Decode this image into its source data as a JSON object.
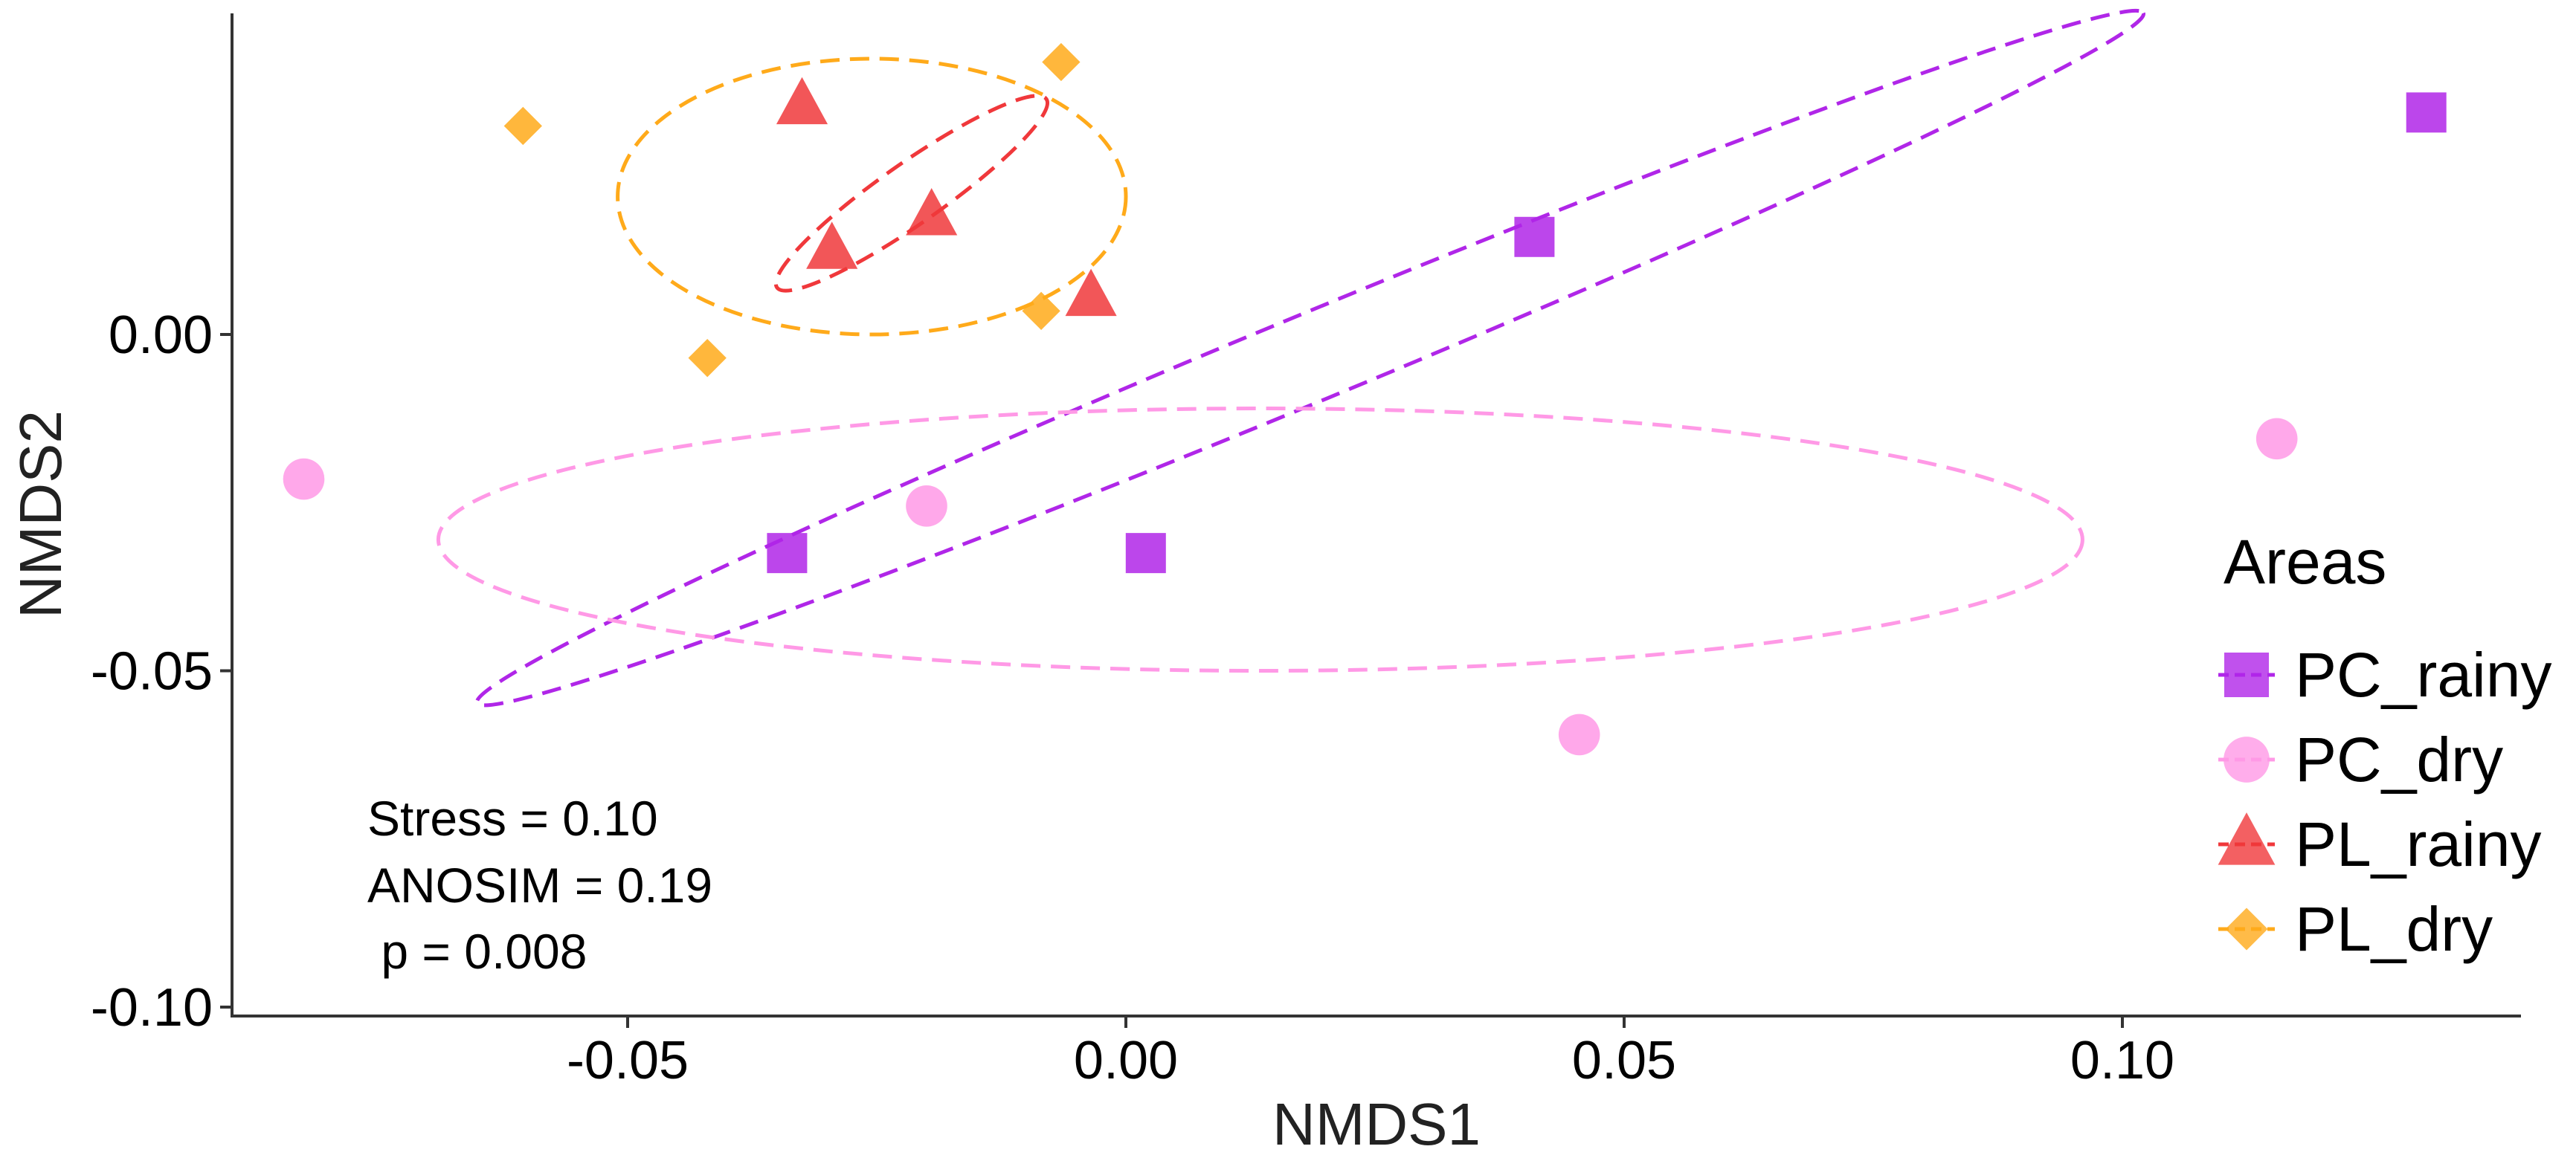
{
  "chart_data": {
    "type": "scatter",
    "title": "",
    "xlabel": "NMDS1",
    "ylabel": "NMDS2",
    "xlim": [
      -0.0925,
      0.1395
    ],
    "ylim": [
      -0.1015,
      0.0485
    ],
    "grid": false,
    "x_ticks": [
      {
        "value": -0.05,
        "label": "-0.05"
      },
      {
        "value": 0.0,
        "label": "0.00"
      },
      {
        "value": 0.05,
        "label": "0.05"
      },
      {
        "value": 0.1,
        "label": "0.10"
      }
    ],
    "y_ticks": [
      {
        "value": 0.0,
        "label": "0.00"
      },
      {
        "value": -0.05,
        "label": "-0.05"
      },
      {
        "value": -0.1,
        "label": "-0.10"
      }
    ],
    "legend": {
      "title": "Areas",
      "position": "right",
      "entries": [
        "PC_rainy",
        "PC_dry",
        "PL_rainy",
        "PL_dry"
      ]
    },
    "series": [
      {
        "name": "PC_rainy",
        "marker": "square",
        "color": "#B026E8",
        "points": [
          [
            -0.034,
            -0.0325
          ],
          [
            0.002,
            -0.0325
          ],
          [
            0.041,
            0.0145
          ],
          [
            0.1305,
            0.033
          ]
        ],
        "ellipse": {
          "cx": 0.0185,
          "cy": -0.0035,
          "rx": 0.0905,
          "ry": 0.0065,
          "angle_deg": 22.5
        }
      },
      {
        "name": "PC_dry",
        "marker": "circle",
        "color": "#FF99E6",
        "points": [
          [
            -0.0825,
            -0.0215
          ],
          [
            -0.02,
            -0.0255
          ],
          [
            0.0455,
            -0.0595
          ],
          [
            0.1155,
            -0.0155
          ]
        ],
        "ellipse": {
          "cx": 0.0135,
          "cy": -0.0305,
          "rx": 0.0825,
          "ry": 0.0195,
          "angle_deg": 0
        }
      },
      {
        "name": "PL_rainy",
        "marker": "triangle",
        "color": "#F0383B",
        "points": [
          [
            -0.0325,
            0.034
          ],
          [
            -0.0295,
            0.0125
          ],
          [
            -0.0195,
            0.0175
          ],
          [
            -0.0035,
            0.0055
          ]
        ],
        "ellipse": {
          "cx": -0.0215,
          "cy": 0.021,
          "rx": 0.0165,
          "ry": 0.0045,
          "angle_deg": 35
        }
      },
      {
        "name": "PL_dry",
        "marker": "diamond",
        "color": "#FFAA1A",
        "points": [
          [
            -0.0605,
            0.031
          ],
          [
            -0.042,
            -0.0035
          ],
          [
            -0.0085,
            0.0035
          ],
          [
            -0.0065,
            0.0405
          ]
        ],
        "ellipse": {
          "cx": -0.0255,
          "cy": 0.0205,
          "rx": 0.0255,
          "ry": 0.0205,
          "angle_deg": 0
        }
      }
    ],
    "annotations": {
      "stress": "Stress = 0.10",
      "anosim": "ANOSIM = 0.19",
      "p": " p = 0.008"
    }
  }
}
